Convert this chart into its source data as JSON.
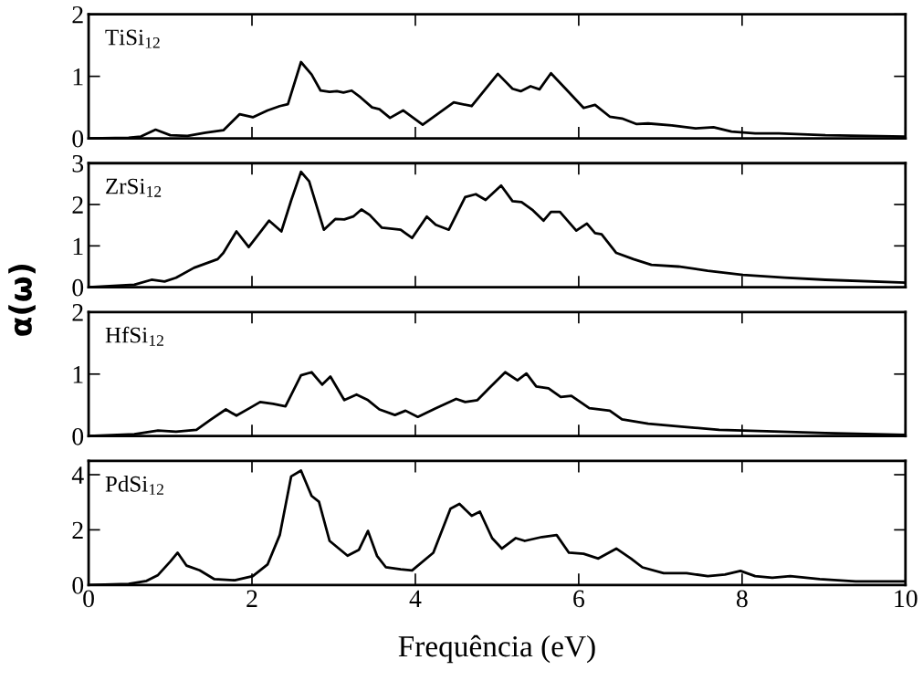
{
  "chart_data": [
    {
      "type": "line",
      "annotations": [
        "TiSi$_{12}$"
      ],
      "ylabel": "α(ω)",
      "xlim": [
        0,
        10
      ],
      "xticks": [
        0,
        2,
        4,
        6,
        8,
        10
      ],
      "ylim": [
        0,
        2
      ],
      "yticks": [
        0,
        1,
        2
      ],
      "tick_labels": "y",
      "series": [
        {
          "color": "#000000",
          "x": [
            0,
            0.49,
            0.64,
            0.82,
            1.0,
            1.21,
            1.43,
            1.65,
            1.85,
            2.01,
            2.19,
            2.34,
            2.44,
            2.6,
            2.73,
            2.84,
            2.95,
            3.04,
            3.12,
            3.22,
            3.33,
            3.47,
            3.56,
            3.69,
            3.85,
            4.09,
            4.47,
            4.69,
            5.01,
            5.19,
            5.29,
            5.41,
            5.52,
            5.66,
            5.84,
            6.06,
            6.2,
            6.38,
            6.53,
            6.71,
            6.85,
            7.14,
            7.43,
            7.65,
            7.87,
            8.16,
            8.45,
            9.02,
            10
          ],
          "values": [
            0,
            0.01,
            0.03,
            0.14,
            0.05,
            0.04,
            0.09,
            0.13,
            0.39,
            0.34,
            0.45,
            0.52,
            0.55,
            1.23,
            1.03,
            0.77,
            0.75,
            0.76,
            0.74,
            0.77,
            0.66,
            0.5,
            0.47,
            0.33,
            0.45,
            0.22,
            0.58,
            0.52,
            1.04,
            0.8,
            0.76,
            0.84,
            0.79,
            1.05,
            0.8,
            0.49,
            0.54,
            0.35,
            0.32,
            0.23,
            0.24,
            0.21,
            0.16,
            0.18,
            0.11,
            0.08,
            0.08,
            0.05,
            0.03
          ]
        }
      ]
    },
    {
      "type": "line",
      "annotations": [
        "ZrSi$_{12}$"
      ],
      "xlim": [
        0,
        10
      ],
      "xticks": [
        0,
        2,
        4,
        6,
        8,
        10
      ],
      "ylim": [
        0,
        3
      ],
      "yticks": [
        0,
        1,
        2,
        3
      ],
      "tick_labels": "y",
      "series": [
        {
          "color": "#000000",
          "x": [
            0,
            0.56,
            0.77,
            0.93,
            1.07,
            1.29,
            1.58,
            1.65,
            1.81,
            1.96,
            2.21,
            2.36,
            2.48,
            2.6,
            2.7,
            2.88,
            3.02,
            3.13,
            3.24,
            3.34,
            3.44,
            3.59,
            3.82,
            3.96,
            4.14,
            4.25,
            4.41,
            4.61,
            4.74,
            4.86,
            5.05,
            5.19,
            5.3,
            5.44,
            5.57,
            5.66,
            5.77,
            5.97,
            6.1,
            6.2,
            6.28,
            6.46,
            6.67,
            6.89,
            7.22,
            7.58,
            8.01,
            8.52,
            9.02,
            10
          ],
          "values": [
            0,
            0.06,
            0.18,
            0.14,
            0.23,
            0.47,
            0.68,
            0.83,
            1.35,
            0.97,
            1.61,
            1.35,
            2.1,
            2.79,
            2.56,
            1.39,
            1.65,
            1.64,
            1.71,
            1.88,
            1.75,
            1.44,
            1.39,
            1.19,
            1.71,
            1.51,
            1.39,
            2.18,
            2.25,
            2.11,
            2.46,
            2.08,
            2.06,
            1.86,
            1.61,
            1.82,
            1.82,
            1.37,
            1.54,
            1.31,
            1.28,
            0.83,
            0.68,
            0.54,
            0.5,
            0.4,
            0.3,
            0.23,
            0.18,
            0.11
          ]
        }
      ]
    },
    {
      "type": "line",
      "annotations": [
        "HfSi$_{12}$"
      ],
      "xlim": [
        0,
        10
      ],
      "xticks": [
        0,
        2,
        4,
        6,
        8,
        10
      ],
      "ylim": [
        0,
        2
      ],
      "yticks": [
        0,
        1,
        2
      ],
      "tick_labels": "y",
      "series": [
        {
          "color": "#000000",
          "x": [
            0,
            0.56,
            0.85,
            1.07,
            1.32,
            1.5,
            1.68,
            1.81,
            1.97,
            2.1,
            2.26,
            2.41,
            2.6,
            2.73,
            2.86,
            2.96,
            3.13,
            3.28,
            3.42,
            3.56,
            3.75,
            3.88,
            4.03,
            4.25,
            4.5,
            4.61,
            4.76,
            4.9,
            5.1,
            5.25,
            5.36,
            5.48,
            5.63,
            5.78,
            5.91,
            6.13,
            6.38,
            6.53,
            6.85,
            7.29,
            7.72,
            8.3,
            9.02,
            10
          ],
          "values": [
            0,
            0.03,
            0.09,
            0.07,
            0.1,
            0.27,
            0.43,
            0.33,
            0.45,
            0.55,
            0.52,
            0.48,
            0.98,
            1.03,
            0.83,
            0.96,
            0.58,
            0.67,
            0.58,
            0.43,
            0.34,
            0.41,
            0.31,
            0.45,
            0.6,
            0.55,
            0.58,
            0.77,
            1.03,
            0.9,
            1.01,
            0.8,
            0.77,
            0.63,
            0.65,
            0.45,
            0.41,
            0.27,
            0.2,
            0.15,
            0.1,
            0.08,
            0.05,
            0.02
          ]
        }
      ]
    },
    {
      "type": "line",
      "annotations": [
        "PdSi$_{12}$"
      ],
      "xlabel": "Frequência (eV)",
      "xlim": [
        0,
        10
      ],
      "xticks": [
        0,
        2,
        4,
        6,
        8,
        10
      ],
      "ylim": [
        0,
        4.5
      ],
      "yticks": [
        0,
        2,
        4
      ],
      "series": [
        {
          "color": "#000000",
          "x": [
            0,
            0.49,
            0.71,
            0.85,
            1.0,
            1.09,
            1.2,
            1.36,
            1.54,
            1.79,
            2.01,
            2.19,
            2.34,
            2.48,
            2.6,
            2.73,
            2.82,
            2.95,
            3.17,
            3.31,
            3.42,
            3.53,
            3.64,
            3.82,
            3.96,
            4.22,
            4.43,
            4.54,
            4.69,
            4.79,
            4.94,
            5.06,
            5.23,
            5.34,
            5.55,
            5.73,
            5.88,
            6.06,
            6.24,
            6.46,
            6.64,
            6.78,
            7.04,
            7.32,
            7.58,
            7.79,
            7.98,
            8.16,
            8.37,
            8.59,
            8.95,
            9.39,
            10
          ],
          "values": [
            0,
            0.04,
            0.15,
            0.36,
            0.85,
            1.17,
            0.7,
            0.53,
            0.21,
            0.17,
            0.32,
            0.74,
            1.81,
            3.94,
            4.15,
            3.23,
            3.02,
            1.6,
            1.06,
            1.28,
            1.96,
            1.06,
            0.64,
            0.57,
            0.53,
            1.17,
            2.77,
            2.94,
            2.51,
            2.66,
            1.7,
            1.32,
            1.7,
            1.6,
            1.74,
            1.81,
            1.17,
            1.13,
            0.96,
            1.32,
            0.96,
            0.64,
            0.43,
            0.43,
            0.32,
            0.38,
            0.51,
            0.32,
            0.26,
            0.32,
            0.21,
            0.13,
            0.13
          ]
        }
      ]
    }
  ]
}
